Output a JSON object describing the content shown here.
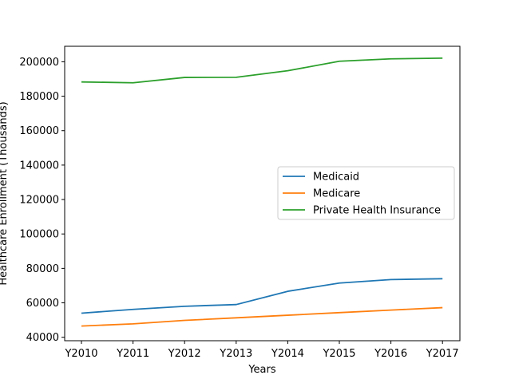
{
  "chart_data": {
    "type": "line",
    "title": "",
    "xlabel": "Years",
    "ylabel": "Healthcare Enrollment (Thousands)",
    "categories": [
      "Y2010",
      "Y2011",
      "Y2012",
      "Y2013",
      "Y2014",
      "Y2015",
      "Y2016",
      "Y2017"
    ],
    "ylim": [
      38000,
      209000
    ],
    "yticks": [
      40000,
      60000,
      80000,
      100000,
      120000,
      140000,
      160000,
      180000,
      200000
    ],
    "grid": false,
    "legend_position": "center-right",
    "series": [
      {
        "name": "Medicaid",
        "color": "#1f77b4",
        "values": [
          54000,
          56200,
          58000,
          59000,
          66700,
          71500,
          73500,
          74000
        ]
      },
      {
        "name": "Medicare",
        "color": "#ff7f0e",
        "values": [
          46500,
          47800,
          49800,
          51300,
          52800,
          54300,
          55800,
          57200
        ]
      },
      {
        "name": "Private Health Insurance",
        "color": "#2ca02c",
        "values": [
          188300,
          187800,
          190900,
          191000,
          194800,
          200300,
          201700,
          202100
        ]
      }
    ]
  }
}
